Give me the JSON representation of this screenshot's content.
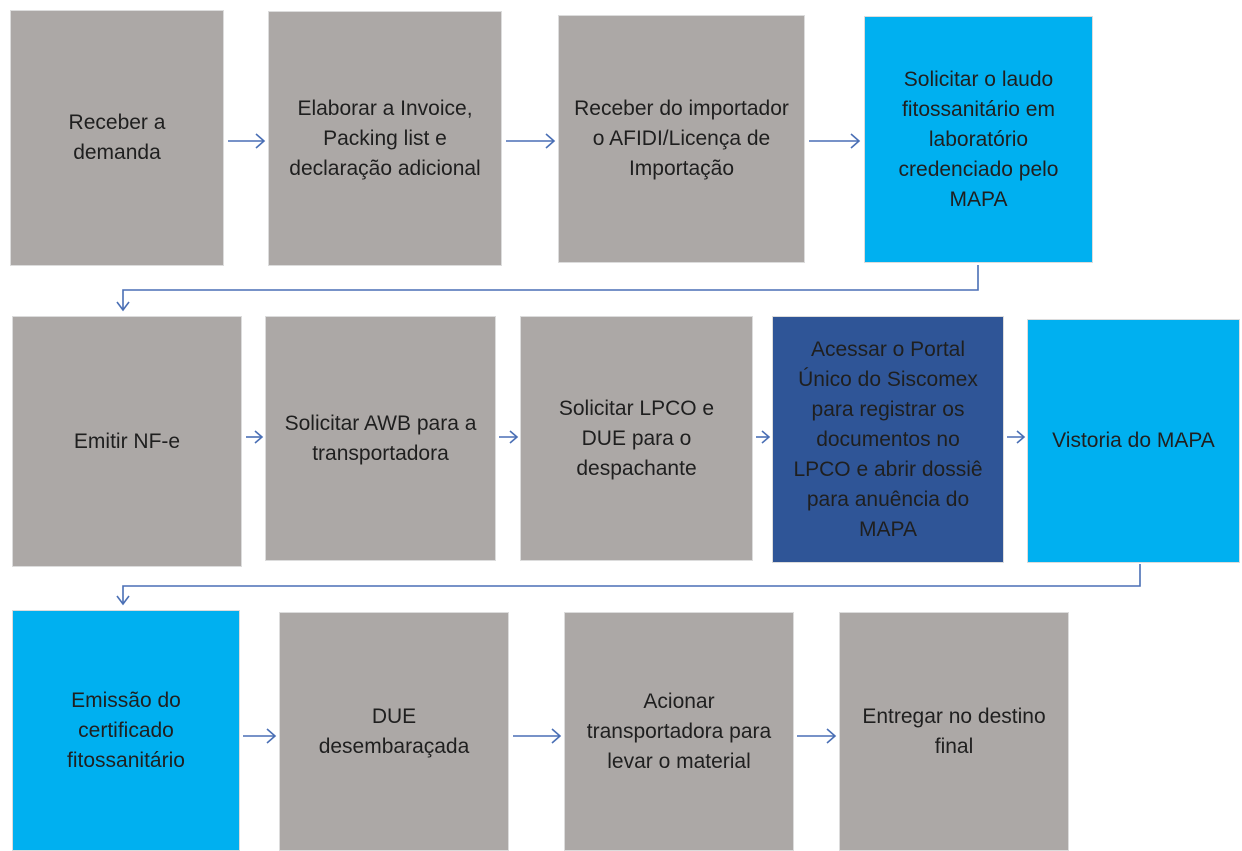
{
  "colors": {
    "gray": "#aca8a6",
    "cyan": "#00b0f0",
    "navy": "#2f5597",
    "arrow": "#4a6fb5"
  },
  "steps": [
    {
      "id": 1,
      "label": "Receber a demanda",
      "color": "gray"
    },
    {
      "id": 2,
      "label": "Elaborar a Invoice, Packing list e declaração adicional",
      "color": "gray"
    },
    {
      "id": 3,
      "label": "Receber do importador o AFIDI/Licença de Importação",
      "color": "gray"
    },
    {
      "id": 4,
      "label": "Solicitar o laudo fitossanitário em laboratório credenciado pelo MAPA",
      "color": "cyan"
    },
    {
      "id": 5,
      "label": "Emitir NF-e",
      "color": "gray"
    },
    {
      "id": 6,
      "label": "Solicitar AWB para a transportadora",
      "color": "gray"
    },
    {
      "id": 7,
      "label": "Solicitar LPCO e DUE para o despachante",
      "color": "gray"
    },
    {
      "id": 8,
      "label": "Acessar o Portal Único do Siscomex para registrar os documentos no LPCO e abrir dossiê para anuência do MAPA",
      "color": "navy"
    },
    {
      "id": 9,
      "label": "Vistoria do MAPA",
      "color": "cyan"
    },
    {
      "id": 10,
      "label": "Emissão do certificado fitossanitário",
      "color": "cyan"
    },
    {
      "id": 11,
      "label": "DUE desembaraçada",
      "color": "gray"
    },
    {
      "id": 12,
      "label": "Acionar transportadora para levar o material",
      "color": "gray"
    },
    {
      "id": 13,
      "label": "Entregar no destino final",
      "color": "gray"
    }
  ]
}
